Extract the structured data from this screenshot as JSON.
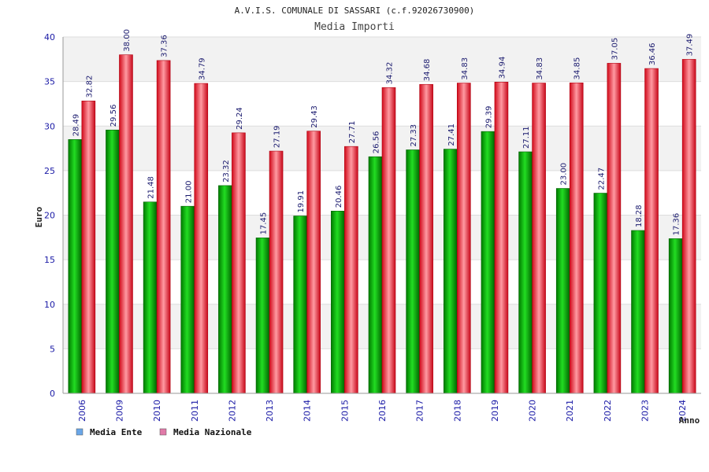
{
  "chart_data": {
    "type": "bar",
    "title": "A.V.I.S. COMUNALE DI SASSARI (c.f.92026730900)",
    "subtitle": "Media Importi",
    "xlabel": "Anno",
    "ylabel": "Euro",
    "ylim": [
      0,
      40
    ],
    "yticks": [
      0,
      5,
      10,
      15,
      20,
      25,
      30,
      35,
      40
    ],
    "grid": true,
    "legend_position": "bottom-left",
    "categories": [
      "2006",
      "2009",
      "2010",
      "2011",
      "2012",
      "2013",
      "2014",
      "2015",
      "2016",
      "2017",
      "2018",
      "2019",
      "2020",
      "2021",
      "2022",
      "2023",
      "2024"
    ],
    "series": [
      {
        "name": "Media Ente",
        "color": "#00aa00",
        "legend_color": "#6aa6e8",
        "values": [
          28.49,
          29.56,
          21.48,
          21.0,
          23.32,
          17.45,
          19.91,
          20.46,
          26.56,
          27.33,
          27.41,
          29.39,
          27.11,
          23.0,
          22.47,
          18.28,
          17.36
        ],
        "labels": [
          "28.49",
          "29.56",
          "21.48",
          "21.00",
          "23.32",
          "17.45",
          "19.91",
          "20.46",
          "26.56",
          "27.33",
          "27.41",
          "29.39",
          "27.11",
          "23.00",
          "22.47",
          "18.28",
          "17.36"
        ]
      },
      {
        "name": "Media Nazionale",
        "color": "#ee2233",
        "legend_color": "#e07aa8",
        "values": [
          32.82,
          38.0,
          37.36,
          34.79,
          29.24,
          27.19,
          29.43,
          27.71,
          34.32,
          34.68,
          34.83,
          34.94,
          34.83,
          34.85,
          37.05,
          36.46,
          37.49
        ],
        "labels": [
          "32.82",
          "38.00",
          "37.36",
          "34.79",
          "29.24",
          "27.19",
          "29.43",
          "27.71",
          "34.32",
          "34.68",
          "34.83",
          "34.94",
          "34.83",
          "34.85",
          "37.05",
          "36.46",
          "37.49"
        ]
      }
    ]
  }
}
